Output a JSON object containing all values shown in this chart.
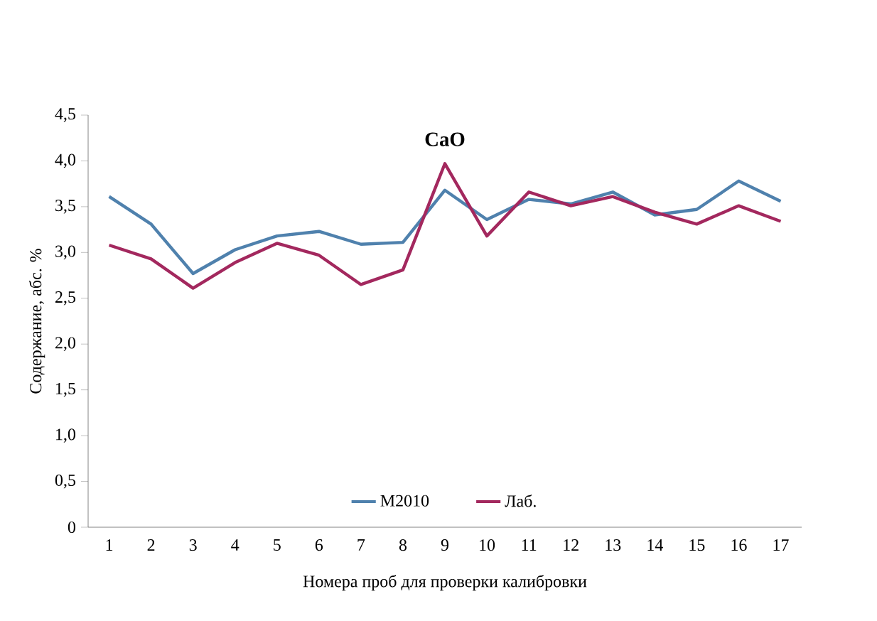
{
  "chart_data": {
    "type": "line",
    "title": "CaO",
    "xlabel": "Номера проб для проверки калибровки",
    "ylabel": "Содержание, абс. %",
    "categories": [
      "1",
      "2",
      "3",
      "4",
      "5",
      "6",
      "7",
      "8",
      "9",
      "10",
      "11",
      "12",
      "13",
      "14",
      "15",
      "16",
      "17"
    ],
    "series": [
      {
        "name": "M2010",
        "color": "#4f81ad",
        "values": [
          3.61,
          3.31,
          2.77,
          3.03,
          3.18,
          3.23,
          3.09,
          3.11,
          3.68,
          3.36,
          3.58,
          3.53,
          3.66,
          3.41,
          3.47,
          3.78,
          3.56
        ]
      },
      {
        "name": "Лаб.",
        "color": "#a3285e",
        "values": [
          3.08,
          2.93,
          2.61,
          2.89,
          3.1,
          2.97,
          2.65,
          2.81,
          3.97,
          3.18,
          3.66,
          3.51,
          3.61,
          3.44,
          3.31,
          3.51,
          3.34
        ]
      }
    ],
    "ylim": [
      0,
      4.5
    ],
    "yticks": [
      0,
      {
        "value": 0.5,
        "label": "0,5"
      },
      {
        "value": 1.0,
        "label": "1,0"
      },
      {
        "value": 1.5,
        "label": "1,5"
      },
      {
        "value": 2.0,
        "label": "2,0"
      },
      {
        "value": 2.5,
        "label": "2,5"
      },
      {
        "value": 3.0,
        "label": "3,0"
      },
      {
        "value": 3.5,
        "label": "3,5"
      },
      {
        "value": 4.0,
        "label": "4,0"
      },
      {
        "value": 4.5,
        "label": "4,5"
      }
    ],
    "grid": false,
    "legend": "bottom",
    "marker": "none",
    "line_style": "solid"
  }
}
